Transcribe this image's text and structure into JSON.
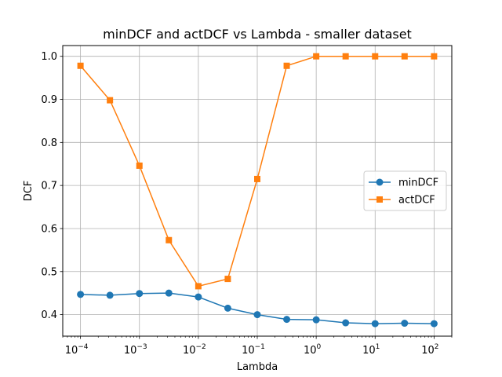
{
  "chart_data": {
    "type": "line",
    "title": "minDCF and actDCF vs Lambda - smaller dataset",
    "xlabel": "Lambda",
    "ylabel": "DCF",
    "x_scale": "log",
    "grid": true,
    "legend_position": "center-right",
    "x": [
      0.0001,
      0.000316,
      0.001,
      0.00316,
      0.01,
      0.0316,
      0.1,
      0.316,
      1,
      3.16,
      10,
      31.6,
      100
    ],
    "xlim": [
      5e-05,
      200
    ],
    "ylim": [
      0.35,
      1.025
    ],
    "x_ticks": [
      {
        "base": "10",
        "exp": "−4",
        "value": 0.0001
      },
      {
        "base": "10",
        "exp": "−3",
        "value": 0.001
      },
      {
        "base": "10",
        "exp": "−2",
        "value": 0.01
      },
      {
        "base": "10",
        "exp": "−1",
        "value": 0.1
      },
      {
        "base": "10",
        "exp": "0",
        "value": 1
      },
      {
        "base": "10",
        "exp": "1",
        "value": 10
      },
      {
        "base": "10",
        "exp": "2",
        "value": 100
      }
    ],
    "y_ticks": [
      "0.4",
      "0.5",
      "0.6",
      "0.7",
      "0.8",
      "0.9",
      "1.0"
    ],
    "series": [
      {
        "name": "minDCF",
        "color": "#1f77b4",
        "marker": "circle",
        "values": [
          0.447,
          0.445,
          0.449,
          0.45,
          0.441,
          0.415,
          0.4,
          0.389,
          0.388,
          0.381,
          0.379,
          0.38,
          0.379
        ]
      },
      {
        "name": "actDCF",
        "color": "#ff7f0e",
        "marker": "square",
        "values": [
          0.978,
          0.898,
          0.746,
          0.573,
          0.466,
          0.483,
          0.715,
          0.978,
          1.0,
          1.0,
          1.0,
          1.0,
          1.0
        ]
      }
    ]
  }
}
